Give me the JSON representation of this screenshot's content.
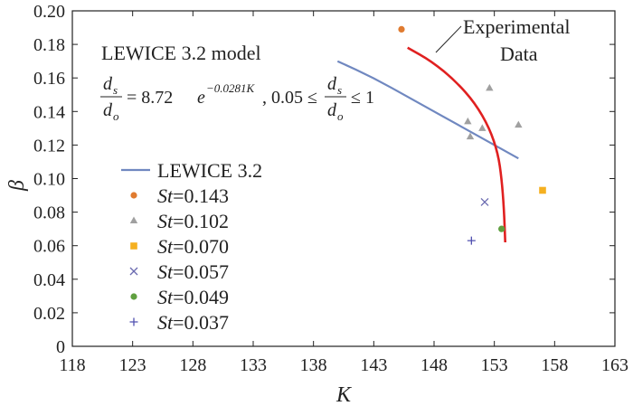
{
  "chart_data": {
    "type": "scatter",
    "xlabel": "K",
    "ylabel": "β",
    "xlim": [
      118,
      163
    ],
    "ylim": [
      0,
      0.2
    ],
    "x_ticks": [
      "118",
      "123",
      "128",
      "133",
      "138",
      "143",
      "148",
      "153",
      "158",
      "163"
    ],
    "y_ticks": [
      "0",
      "0.02",
      "0.04",
      "0.06",
      "0.08",
      "0.10",
      "0.12",
      "0.14",
      "0.16",
      "0.18",
      "0.20"
    ],
    "model_annotation": {
      "title": "LEWICE 3.2 model",
      "lhs_num": "d",
      "lhs_num_sub": "s",
      "lhs_den": "d",
      "lhs_den_sub": "o",
      "equals": "= 8.72",
      "e_base": "e",
      "exponent": "−0.0281K",
      "range_lo": ", 0.05 ≤",
      "range_hi": "≤ 1"
    },
    "experimental_label": [
      "Experimental",
      "Data"
    ],
    "series": [
      {
        "name": "LEWICE 3.2",
        "kind": "line",
        "color": "#7088c0",
        "x": [
          140.0,
          143.0,
          146.0,
          149.0,
          152.0,
          155.0
        ],
        "y": [
          0.17,
          0.16,
          0.148,
          0.136,
          0.124,
          0.112
        ]
      },
      {
        "name": "Experimental Data",
        "kind": "line",
        "color": "#e02020",
        "x": [
          145.8,
          147.8,
          149.8,
          151.4,
          152.6,
          153.3,
          153.6,
          153.8,
          153.9
        ],
        "y": [
          0.178,
          0.17,
          0.158,
          0.145,
          0.13,
          0.115,
          0.1,
          0.082,
          0.062
        ]
      }
    ],
    "legend": [
      {
        "label": "LEWICE 3.2",
        "marker": "line",
        "color": "#7088c0"
      },
      {
        "label_prefix": "St",
        "label_value": "=0.143",
        "marker": "circle",
        "color": "#e07b30"
      },
      {
        "label_prefix": "St",
        "label_value": "=0.102",
        "marker": "triangle",
        "color": "#a0a0a0"
      },
      {
        "label_prefix": "St",
        "label_value": "=0.070",
        "marker": "square",
        "color": "#f5b020"
      },
      {
        "label_prefix": "St",
        "label_value": "=0.057",
        "marker": "x",
        "color": "#6a6ab0"
      },
      {
        "label_prefix": "St",
        "label_value": "=0.049",
        "marker": "circle",
        "color": "#60a040"
      },
      {
        "label_prefix": "St",
        "label_value": "=0.037",
        "marker": "plus",
        "color": "#5050b0"
      }
    ],
    "points": [
      {
        "St": "0.143",
        "marker": "circle",
        "color": "#e07b30",
        "x": 145.3,
        "y": 0.189
      },
      {
        "St": "0.102",
        "marker": "triangle",
        "color": "#a0a0a0",
        "x": 150.8,
        "y": 0.134
      },
      {
        "St": "0.102",
        "marker": "triangle",
        "color": "#a0a0a0",
        "x": 151.0,
        "y": 0.125
      },
      {
        "St": "0.102",
        "marker": "triangle",
        "color": "#a0a0a0",
        "x": 152.0,
        "y": 0.13
      },
      {
        "St": "0.102",
        "marker": "triangle",
        "color": "#a0a0a0",
        "x": 152.6,
        "y": 0.154
      },
      {
        "St": "0.102",
        "marker": "triangle",
        "color": "#a0a0a0",
        "x": 155.0,
        "y": 0.132
      },
      {
        "St": "0.070",
        "marker": "square",
        "color": "#f5b020",
        "x": 157.0,
        "y": 0.093
      },
      {
        "St": "0.057",
        "marker": "x",
        "color": "#6a6ab0",
        "x": 152.2,
        "y": 0.086
      },
      {
        "St": "0.049",
        "marker": "circle",
        "color": "#60a040",
        "x": 153.6,
        "y": 0.07
      },
      {
        "St": "0.037",
        "marker": "plus",
        "color": "#5050b0",
        "x": 151.1,
        "y": 0.063
      }
    ]
  }
}
